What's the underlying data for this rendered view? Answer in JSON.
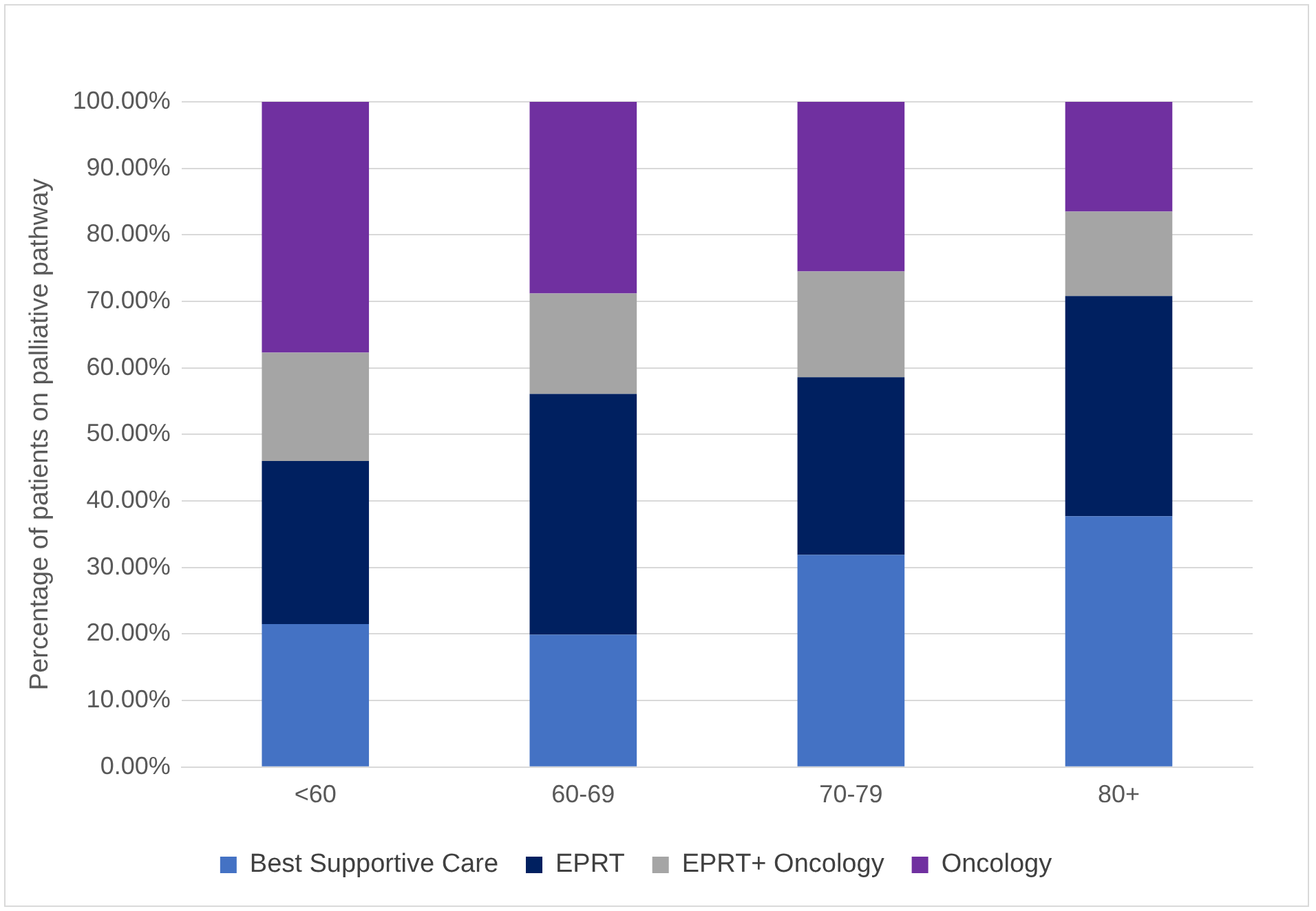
{
  "chart_data": {
    "type": "bar",
    "stacked": true,
    "ylabel": "Percentage of patients on palliative pathway",
    "categories": [
      "<60",
      "60-69",
      "70-79",
      "80+"
    ],
    "series": [
      {
        "name": "Best Supportive Care",
        "color": "#4472c4",
        "values": [
          21.5,
          19.9,
          31.9,
          37.7
        ]
      },
      {
        "name": "EPRT",
        "color": "#002060",
        "values": [
          24.5,
          36.2,
          26.7,
          33.1
        ]
      },
      {
        "name": "EPRT+ Oncology",
        "color": "#a5a5a5",
        "values": [
          16.3,
          15.1,
          15.9,
          12.7
        ]
      },
      {
        "name": "Oncology",
        "color": "#7030a0",
        "values": [
          37.7,
          28.8,
          25.5,
          16.5
        ]
      }
    ],
    "ylim": [
      0,
      100
    ],
    "yticks": [
      {
        "value": 0,
        "label": "0.00%"
      },
      {
        "value": 10,
        "label": "10.00%"
      },
      {
        "value": 20,
        "label": "20.00%"
      },
      {
        "value": 30,
        "label": "30.00%"
      },
      {
        "value": 40,
        "label": "40.00%"
      },
      {
        "value": 50,
        "label": "50.00%"
      },
      {
        "value": 60,
        "label": "60.00%"
      },
      {
        "value": 70,
        "label": "70.00%"
      },
      {
        "value": 80,
        "label": "80.00%"
      },
      {
        "value": 90,
        "label": "90.00%"
      },
      {
        "value": 100,
        "label": "100.00%"
      }
    ],
    "grid": "y",
    "legend": "bottom"
  }
}
